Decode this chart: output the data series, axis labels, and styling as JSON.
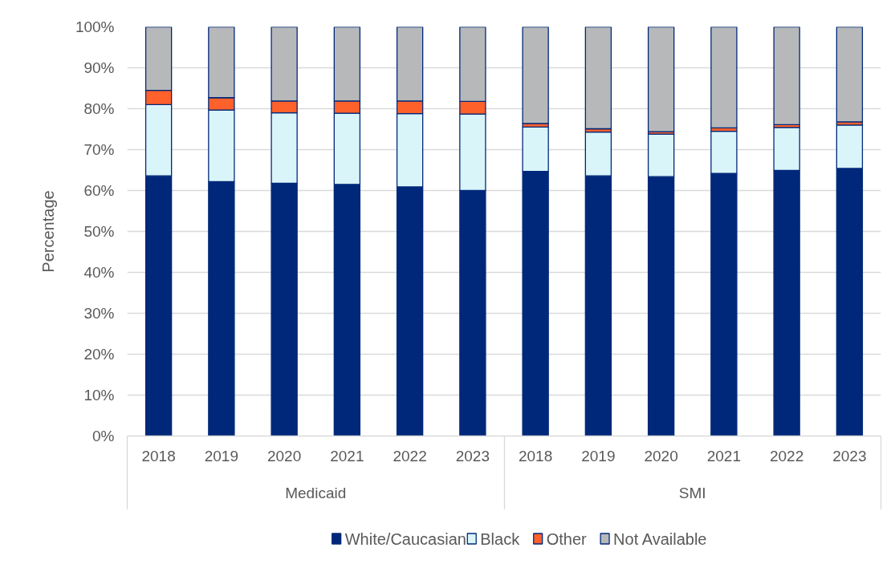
{
  "chart_data": {
    "type": "bar",
    "stacked": true,
    "ylabel": "Percentage",
    "categories": [
      "2018",
      "2019",
      "2020",
      "2021",
      "2022",
      "2023",
      "2018",
      "2019",
      "2020",
      "2021",
      "2022",
      "2023"
    ],
    "annotations": [
      "Medicaid",
      "SMI"
    ],
    "series": [
      {
        "name": "White/Caucasian",
        "color": "#00287a",
        "values": [
          63.6,
          62.2,
          61.8,
          61.5,
          60.9,
          60.0,
          64.7,
          63.6,
          63.4,
          64.2,
          64.9,
          65.4
        ]
      },
      {
        "name": "Black",
        "color": "#d9f5f9",
        "values": [
          17.4,
          17.5,
          17.2,
          17.4,
          17.9,
          18.7,
          10.8,
          10.7,
          10.4,
          10.3,
          10.5,
          10.6
        ]
      },
      {
        "name": "Other",
        "color": "#ff612b",
        "values": [
          3.5,
          3.0,
          2.9,
          3.0,
          3.1,
          3.1,
          0.9,
          0.8,
          0.6,
          0.8,
          0.7,
          0.8
        ]
      },
      {
        "name": "Not Available",
        "color": "#b7b8ba",
        "values": [
          15.5,
          17.3,
          18.1,
          18.1,
          18.1,
          18.2,
          23.6,
          24.9,
          25.6,
          24.7,
          23.9,
          23.2
        ]
      }
    ],
    "ylim": [
      0,
      100
    ],
    "yticks": [
      {
        "value": 0,
        "label": "0%"
      },
      {
        "value": 10,
        "label": "10%"
      },
      {
        "value": 20,
        "label": "20%"
      },
      {
        "value": 30,
        "label": "30%"
      },
      {
        "value": 40,
        "label": "40%"
      },
      {
        "value": 50,
        "label": "50%"
      },
      {
        "value": 60,
        "label": "60%"
      },
      {
        "value": 70,
        "label": "70%"
      },
      {
        "value": 80,
        "label": "80%"
      },
      {
        "value": 90,
        "label": "90%"
      },
      {
        "value": 100,
        "label": "100%"
      }
    ],
    "grid": "y",
    "legend": "bottom"
  }
}
